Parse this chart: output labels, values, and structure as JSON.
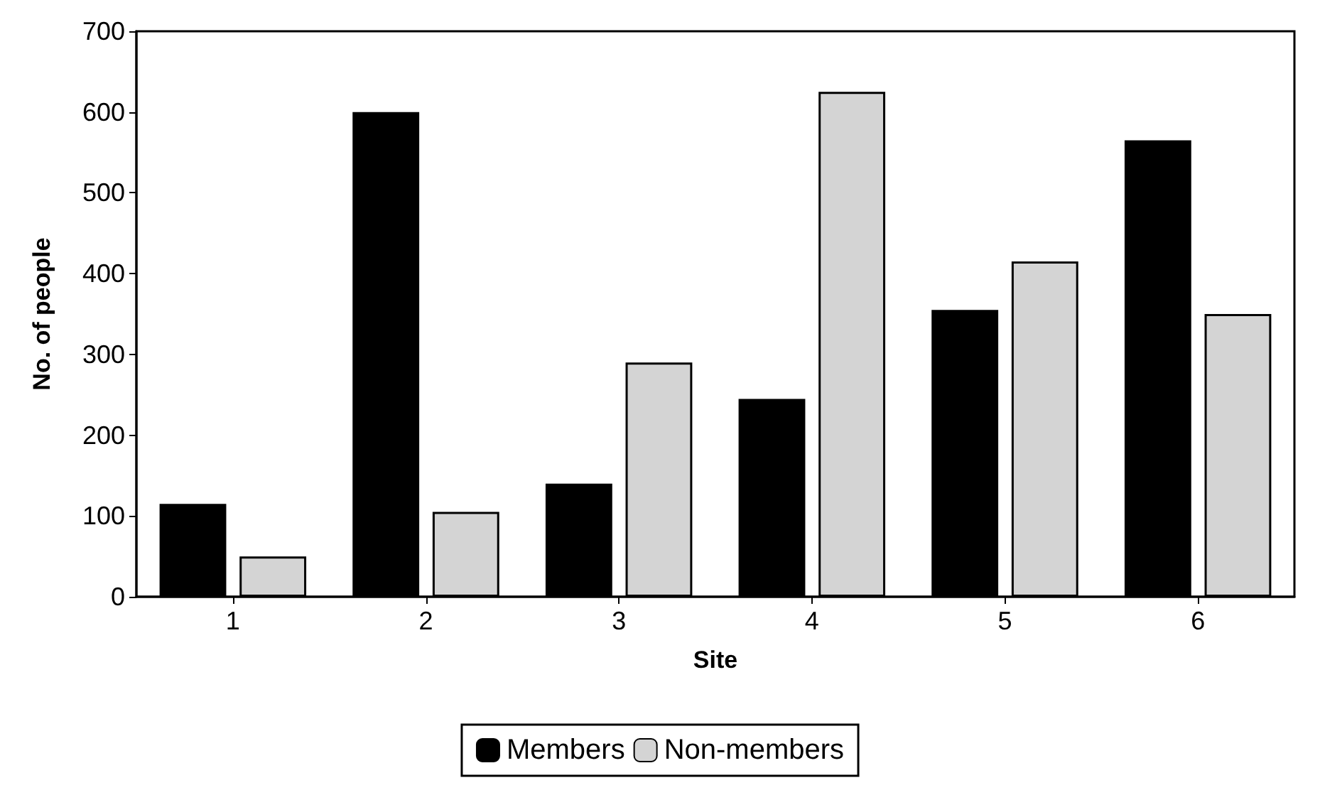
{
  "chart_data": {
    "type": "bar",
    "xlabel": "Site",
    "ylabel": "No. of people",
    "categories": [
      "1",
      "2",
      "3",
      "4",
      "5",
      "6"
    ],
    "series": [
      {
        "name": "Members",
        "color": "#000000",
        "values": [
          115,
          600,
          140,
          245,
          355,
          565
        ]
      },
      {
        "name": "Non-members",
        "color": "#d4d4d4",
        "values": [
          50,
          105,
          290,
          625,
          415,
          350
        ]
      }
    ],
    "ylim": [
      0,
      700
    ],
    "yticks": [
      0,
      100,
      200,
      300,
      400,
      500,
      600,
      700
    ],
    "grid": false,
    "legend": "bottom"
  }
}
